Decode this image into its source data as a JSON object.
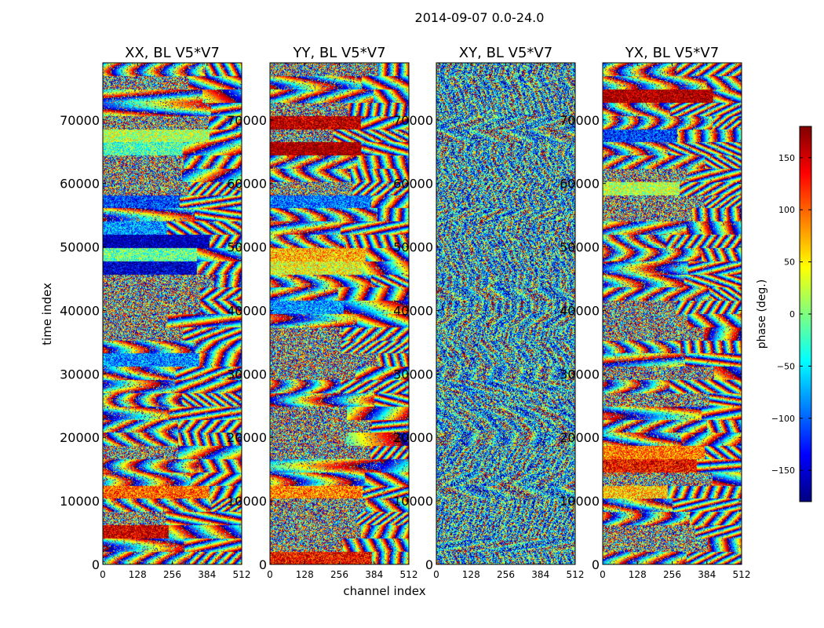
{
  "figure": {
    "suptitle": "2014-09-07 0.0-24.0",
    "xlabel": "channel index",
    "ylabel": "time index"
  },
  "colors": {
    "colormap": "jet",
    "jet_stops": [
      "#00007f",
      "#0000ff",
      "#007fff",
      "#00ffff",
      "#7fff7f",
      "#ffff00",
      "#ff7f00",
      "#ff0000",
      "#7f0000"
    ],
    "axes_frame": "#000000"
  },
  "chart_data": [
    {
      "type": "heatmap",
      "title": "XX, BL V5*V7",
      "x_ticks": [
        "0",
        "128",
        "256",
        "384",
        "512"
      ],
      "y_ticks": [
        "0",
        "10000",
        "20000",
        "30000",
        "40000",
        "50000",
        "60000",
        "70000"
      ],
      "xlim": [
        0,
        512
      ],
      "ylim": [
        0,
        79000
      ],
      "value": "phase (deg.)"
    },
    {
      "type": "heatmap",
      "title": "YY, BL V5*V7",
      "x_ticks": [
        "0",
        "128",
        "256",
        "384",
        "512"
      ],
      "y_ticks": [
        "0",
        "10000",
        "20000",
        "30000",
        "40000",
        "50000",
        "60000",
        "70000"
      ],
      "xlim": [
        0,
        512
      ],
      "ylim": [
        0,
        79000
      ],
      "value": "phase (deg.)"
    },
    {
      "type": "heatmap",
      "title": "XY, BL V5*V7",
      "x_ticks": [
        "0",
        "128",
        "256",
        "384",
        "512"
      ],
      "y_ticks": [
        "0",
        "10000",
        "20000",
        "30000",
        "40000",
        "50000",
        "60000",
        "70000"
      ],
      "xlim": [
        0,
        512
      ],
      "ylim": [
        0,
        79000
      ],
      "value": "phase (deg.)"
    },
    {
      "type": "heatmap",
      "title": "YX, BL V5*V7",
      "x_ticks": [
        "0",
        "128",
        "256",
        "384",
        "512"
      ],
      "y_ticks": [
        "0",
        "10000",
        "20000",
        "30000",
        "40000",
        "50000",
        "60000",
        "70000"
      ],
      "xlim": [
        0,
        512
      ],
      "ylim": [
        0,
        79000
      ],
      "value": "phase (deg.)"
    }
  ],
  "colorbar": {
    "label": "phase (deg.)",
    "range": [
      -180,
      180
    ],
    "ticks": [
      "150",
      "100",
      "50",
      "0",
      "−50",
      "−100",
      "−150"
    ],
    "tick_values": [
      150,
      100,
      50,
      0,
      -50,
      -100,
      -150
    ]
  }
}
